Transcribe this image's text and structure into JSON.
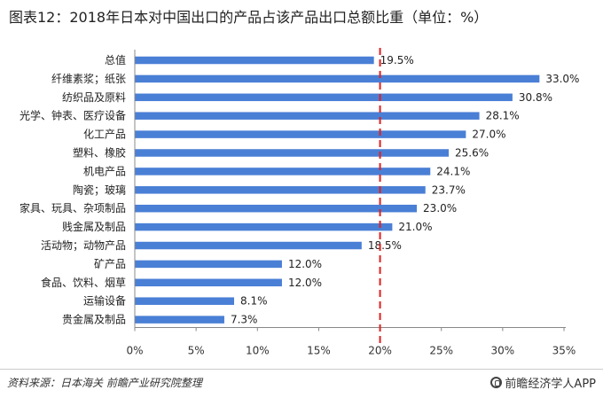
{
  "chart_data": {
    "type": "bar",
    "orientation": "horizontal",
    "title": "图表12：2018年日本对中国出口的产品占该产品出口总额比重（单位：%）",
    "categories": [
      "总值",
      "纤维素浆；纸张",
      "纺织品及原料",
      "光学、钟表、医疗设备",
      "化工产品",
      "塑料、橡胶",
      "机电产品",
      "陶瓷；玻璃",
      "家具、玩具、杂项制品",
      "贱金属及制品",
      "活动物；动物产品",
      "矿产品",
      "食品、饮料、烟草",
      "运输设备",
      "贵金属及制品"
    ],
    "values": [
      19.5,
      33.0,
      30.8,
      28.1,
      27.0,
      25.6,
      24.1,
      23.7,
      23.0,
      21.0,
      18.5,
      12.0,
      12.0,
      8.1,
      7.3
    ],
    "value_labels": [
      "19.5%",
      "33.0%",
      "30.8%",
      "28.1%",
      "27.0%",
      "25.6%",
      "24.1%",
      "23.7%",
      "23.0%",
      "21.0%",
      "18.5%",
      "12.0%",
      "12.0%",
      "8.1%",
      "7.3%"
    ],
    "highlight_index": 0,
    "reference_line": 20,
    "xlim": [
      0,
      35
    ],
    "xticks": [
      0,
      5,
      10,
      15,
      20,
      25,
      30,
      35
    ],
    "xtick_labels": [
      "0%",
      "5%",
      "10%",
      "15%",
      "20%",
      "25%",
      "30%",
      "35%"
    ],
    "grid": false,
    "legend": "none"
  },
  "footer": {
    "source": "资料来源：日本海关  前瞻产业研究院整理",
    "brand": "前瞻经济学人APP"
  },
  "colors": {
    "bar": "#4a7fd6",
    "reference_line": "#e02020",
    "highlight_label": "#e02020",
    "axis": "#888888"
  }
}
